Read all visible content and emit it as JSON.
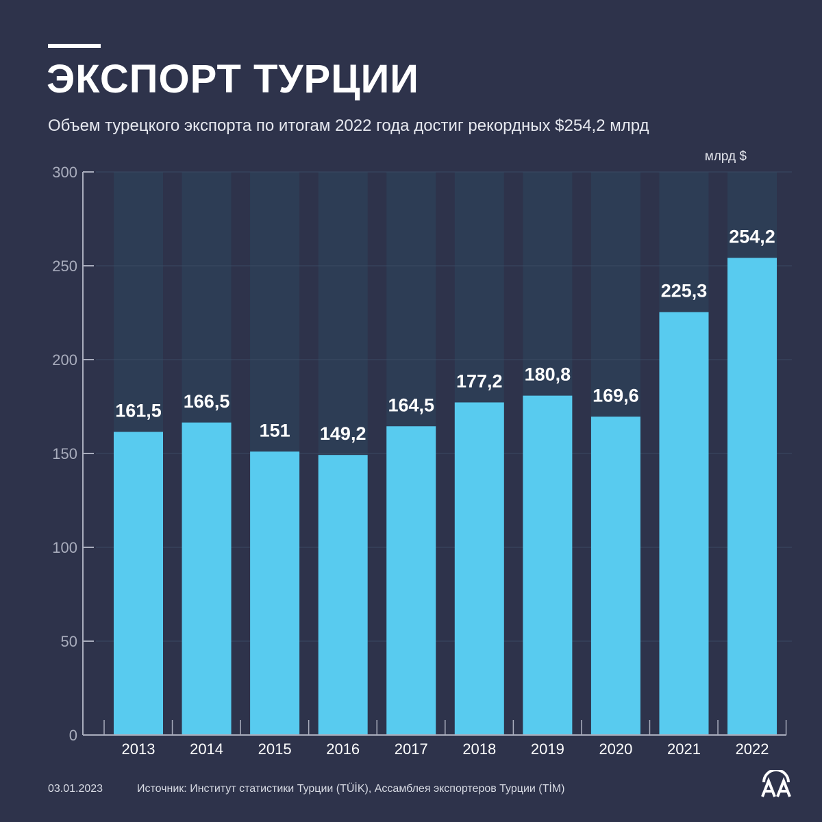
{
  "header": {
    "title": "ЭКСПОРТ ТУРЦИИ",
    "subtitle": "Объем турецкого экспорта по итогам 2022 года достиг рекордных $254,2 млрд",
    "unit": "млрд $"
  },
  "chart_data": {
    "type": "bar",
    "categories": [
      "2013",
      "2014",
      "2015",
      "2016",
      "2017",
      "2018",
      "2019",
      "2020",
      "2021",
      "2022"
    ],
    "values": [
      161.5,
      166.5,
      151,
      149.2,
      164.5,
      177.2,
      180.8,
      169.6,
      225.3,
      254.2
    ],
    "value_labels": [
      "161,5",
      "166,5",
      "151",
      "149,2",
      "164,5",
      "177,2",
      "180,8",
      "169,6",
      "225,3",
      "254,2"
    ],
    "ylim": [
      0,
      300
    ],
    "yticks": [
      0,
      50,
      100,
      150,
      200,
      250,
      300
    ],
    "ylabel": "млрд $",
    "grid": true,
    "colors": {
      "bar": "#58cbef",
      "bar_background": "#2d3d55",
      "background": "#2e334b"
    }
  },
  "footer": {
    "date": "03.01.2023",
    "source": "Источник: Институт статистики Турции (TÜİK), Ассамблея экспортеров Турции (TİM)",
    "logo_text": "AA"
  }
}
